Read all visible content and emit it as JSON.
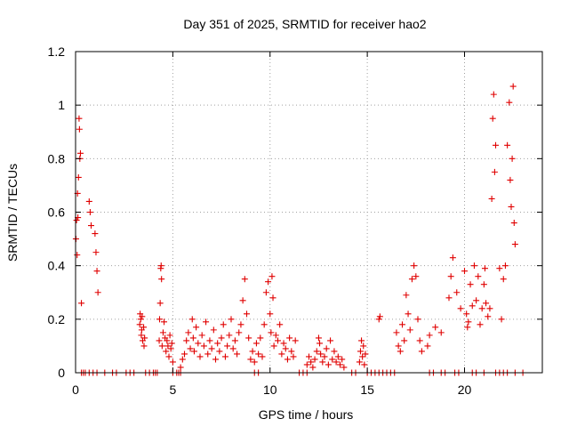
{
  "chart_data": {
    "type": "scatter",
    "title": "Day 351 of 2025, SRMTID for receiver hao2",
    "xlabel": "GPS time / hours",
    "ylabel": "SRMTID / TECUs",
    "xlim": [
      0,
      24
    ],
    "ylim": [
      0,
      1.2
    ],
    "xticks": [
      0,
      5,
      10,
      15,
      20
    ],
    "xtick_labels": [
      "0",
      "5",
      "10",
      "15",
      "20"
    ],
    "yticks": [
      0,
      0.2,
      0.4,
      0.6,
      0.8,
      1.0,
      1.2
    ],
    "ytick_labels": [
      "0",
      "0.2",
      "0.4",
      "0.6",
      "0.8",
      "1",
      "1.2"
    ],
    "grid": true,
    "marker": "+",
    "color": "#e00000",
    "series": [
      {
        "name": "SRMTID",
        "x": [
          0.02,
          0.05,
          0.08,
          0.1,
          0.12,
          0.15,
          0.18,
          0.2,
          0.22,
          0.25,
          0.3,
          0.4,
          0.7,
          0.75,
          0.8,
          1.0,
          1.05,
          1.1,
          1.15,
          3.3,
          3.32,
          3.35,
          3.38,
          3.4,
          3.42,
          3.45,
          3.5,
          3.52,
          3.55,
          4.3,
          4.32,
          4.35,
          4.38,
          4.4,
          4.42,
          4.45,
          4.5,
          4.55,
          4.6,
          4.65,
          4.7,
          4.75,
          4.8,
          4.85,
          4.9,
          4.95,
          5.0,
          5.4,
          5.5,
          5.6,
          5.7,
          5.8,
          5.9,
          6.0,
          6.05,
          6.1,
          6.2,
          6.3,
          6.4,
          6.5,
          6.6,
          6.7,
          6.8,
          6.9,
          7.0,
          7.1,
          7.2,
          7.3,
          7.4,
          7.5,
          7.6,
          7.7,
          7.8,
          7.9,
          8.0,
          8.1,
          8.2,
          8.3,
          8.4,
          8.5,
          8.6,
          8.7,
          8.8,
          8.9,
          9.0,
          9.1,
          9.2,
          9.3,
          9.4,
          9.5,
          9.6,
          9.7,
          9.8,
          9.9,
          10.0,
          10.05,
          10.1,
          10.15,
          10.2,
          10.3,
          10.4,
          10.5,
          10.6,
          10.7,
          10.8,
          10.9,
          11.0,
          11.1,
          11.2,
          11.3,
          11.9,
          12.0,
          12.1,
          12.2,
          12.3,
          12.4,
          12.5,
          12.55,
          12.6,
          12.7,
          12.8,
          12.9,
          13.0,
          13.1,
          13.2,
          13.3,
          13.4,
          13.5,
          13.6,
          13.7,
          13.8,
          14.6,
          14.65,
          14.7,
          14.75,
          14.8,
          14.85,
          14.9,
          15.6,
          15.65,
          16.5,
          16.6,
          16.7,
          16.8,
          16.9,
          17.0,
          17.1,
          17.2,
          17.3,
          17.4,
          17.5,
          17.6,
          17.7,
          17.8,
          18.1,
          18.2,
          18.5,
          18.8,
          19.2,
          19.3,
          19.4,
          19.6,
          19.8,
          20.0,
          20.1,
          20.15,
          20.2,
          20.3,
          20.4,
          20.5,
          20.6,
          20.7,
          20.8,
          20.9,
          21.0,
          21.05,
          21.1,
          21.2,
          21.3,
          21.4,
          21.45,
          21.5,
          21.55,
          21.6,
          21.8,
          21.9,
          22.0,
          22.1,
          22.2,
          22.3,
          22.35,
          22.4,
          22.45,
          22.5,
          22.55,
          22.6,
          0.3,
          0.5,
          0.7,
          0.9,
          1.1,
          1.5,
          1.9,
          2.1,
          2.6,
          2.8,
          3.0,
          3.6,
          3.8,
          4.0,
          4.1,
          4.2,
          5.0,
          5.2,
          5.3,
          5.4,
          9.2,
          9.4,
          11.5,
          11.7,
          11.9,
          14.2,
          14.4,
          15.0,
          15.2,
          15.4,
          15.6,
          15.8,
          16.0,
          16.2,
          16.4,
          18.2,
          18.4,
          18.8,
          19.0,
          19.5,
          19.7,
          20.4,
          20.6,
          21.0,
          21.6,
          21.8,
          22.0,
          22.2,
          22.6,
          23.0
        ],
        "y": [
          0.5,
          0.57,
          0.44,
          0.67,
          0.58,
          0.73,
          0.95,
          0.91,
          0.8,
          0.82,
          0.26,
          0.0,
          0.64,
          0.6,
          0.55,
          0.52,
          0.45,
          0.38,
          0.3,
          0.18,
          0.22,
          0.2,
          0.14,
          0.16,
          0.21,
          0.12,
          0.17,
          0.1,
          0.13,
          0.12,
          0.2,
          0.26,
          0.39,
          0.4,
          0.35,
          0.1,
          0.15,
          0.19,
          0.13,
          0.08,
          0.12,
          0.1,
          0.06,
          0.14,
          0.09,
          0.11,
          0.04,
          0.02,
          0.05,
          0.07,
          0.12,
          0.15,
          0.09,
          0.2,
          0.13,
          0.08,
          0.17,
          0.11,
          0.06,
          0.14,
          0.1,
          0.19,
          0.07,
          0.12,
          0.09,
          0.16,
          0.05,
          0.11,
          0.08,
          0.13,
          0.18,
          0.06,
          0.1,
          0.14,
          0.2,
          0.09,
          0.12,
          0.07,
          0.15,
          0.18,
          0.27,
          0.35,
          0.22,
          0.13,
          0.05,
          0.08,
          0.04,
          0.11,
          0.07,
          0.13,
          0.06,
          0.18,
          0.3,
          0.34,
          0.22,
          0.15,
          0.36,
          0.28,
          0.1,
          0.14,
          0.12,
          0.18,
          0.07,
          0.11,
          0.09,
          0.05,
          0.13,
          0.08,
          0.06,
          0.12,
          0.03,
          0.06,
          0.04,
          0.02,
          0.05,
          0.08,
          0.13,
          0.11,
          0.07,
          0.04,
          0.06,
          0.09,
          0.03,
          0.12,
          0.05,
          0.08,
          0.04,
          0.06,
          0.03,
          0.05,
          0.02,
          0.04,
          0.08,
          0.12,
          0.06,
          0.1,
          0.03,
          0.07,
          0.2,
          0.21,
          0.15,
          0.1,
          0.08,
          0.18,
          0.12,
          0.29,
          0.22,
          0.16,
          0.35,
          0.4,
          0.36,
          0.2,
          0.12,
          0.08,
          0.1,
          0.14,
          0.17,
          0.15,
          0.28,
          0.36,
          0.43,
          0.3,
          0.24,
          0.38,
          0.22,
          0.17,
          0.19,
          0.33,
          0.25,
          0.4,
          0.27,
          0.36,
          0.18,
          0.24,
          0.33,
          0.39,
          0.26,
          0.21,
          0.24,
          0.65,
          0.95,
          1.04,
          0.75,
          0.85,
          0.39,
          0.2,
          0.35,
          0.4,
          0.85,
          1.01,
          0.72,
          0.62,
          0.8,
          1.07,
          0.56,
          0.48,
          0.0,
          0.0,
          0.0,
          0.0,
          0.0,
          0.0,
          0.0,
          0.0,
          0.0,
          0.0,
          0.0,
          0.0,
          0.0,
          0.0,
          0.0,
          0.0,
          0.0,
          0.0,
          0.0,
          0.0,
          0.0,
          0.0,
          0.0,
          0.0,
          0.0,
          0.0,
          0.0,
          0.0,
          0.0,
          0.0,
          0.0,
          0.0,
          0.0,
          0.0,
          0.0,
          0.0,
          0.0,
          0.0,
          0.0,
          0.0,
          0.0,
          0.0,
          0.0,
          0.0,
          0.0,
          0.0,
          0.0,
          0.0,
          0.0,
          0.0
        ]
      }
    ]
  }
}
